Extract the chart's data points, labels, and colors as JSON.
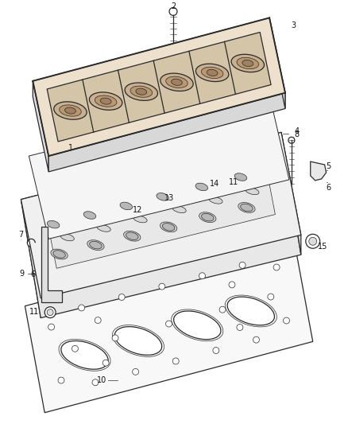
{
  "bg_color": "#ffffff",
  "lc": "#2a2a2a",
  "lw": 0.9,
  "tlw": 0.5,
  "fs": 7,
  "figw": 4.38,
  "figh": 5.33,
  "dpi": 100
}
